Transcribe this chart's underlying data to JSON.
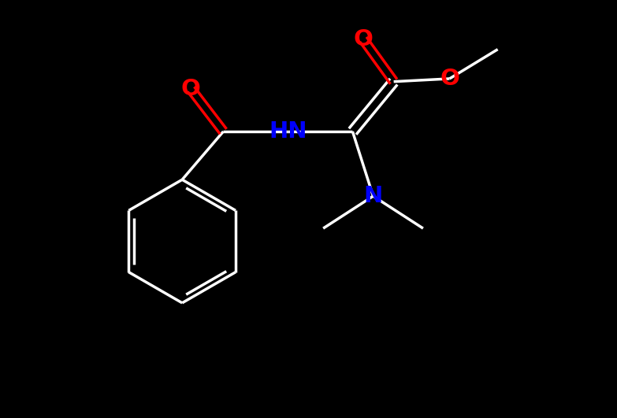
{
  "background_color": "#000000",
  "bond_width": 2.5,
  "hn_color": "#0000FF",
  "n_color": "#0000FF",
  "o_color": "#FF0000",
  "white": "#FFFFFF",
  "font_size": 18,
  "fig_width": 7.83,
  "fig_height": 5.31,
  "dpi": 100,
  "xlim": [
    -1.0,
    9.5
  ],
  "ylim": [
    -0.5,
    6.5
  ]
}
